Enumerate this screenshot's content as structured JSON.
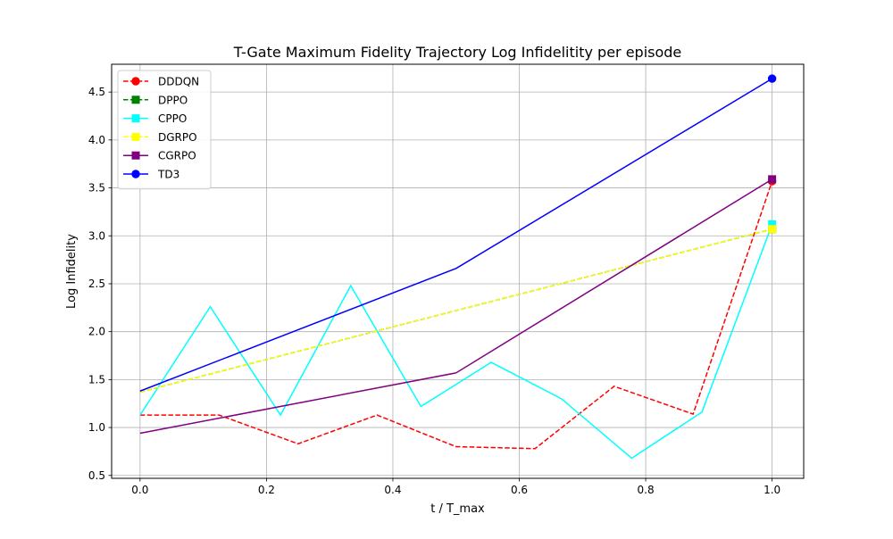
{
  "chart_data": {
    "type": "line",
    "title": "T-Gate Maximum Fidelity Trajectory Log Infidelitity per episode",
    "xlabel": "t / T_max",
    "ylabel": "Log Infidelity",
    "xlim": [
      -0.045,
      1.05
    ],
    "ylim": [
      0.47,
      4.79
    ],
    "xticks": [
      0.0,
      0.2,
      0.4,
      0.6,
      0.8,
      1.0
    ],
    "xtick_labels": [
      "0.0",
      "0.2",
      "0.4",
      "0.6",
      "0.8",
      "1.0"
    ],
    "yticks": [
      0.5,
      1.0,
      1.5,
      2.0,
      2.5,
      3.0,
      3.5,
      4.0,
      4.5
    ],
    "ytick_labels": [
      "0.5",
      "1.0",
      "1.5",
      "2.0",
      "2.5",
      "3.0",
      "3.5",
      "4.0",
      "4.5"
    ],
    "grid": true,
    "legend_position": "top-left",
    "series": [
      {
        "name": "DDDQN",
        "color": "#ff0000",
        "dash": "dashed",
        "marker": "circle",
        "x": [
          0.0,
          0.125,
          0.25,
          0.375,
          0.5,
          0.625,
          0.75,
          0.875,
          1.0
        ],
        "y": [
          1.13,
          1.13,
          0.83,
          1.13,
          0.8,
          0.78,
          1.43,
          1.14,
          3.57
        ]
      },
      {
        "name": "DPPO",
        "color": "#008000",
        "dash": "dashed",
        "marker": "square",
        "x": [
          0.0,
          1.0
        ],
        "y": [
          1.37,
          3.07
        ]
      },
      {
        "name": "CPPO",
        "color": "#00ffff",
        "dash": "solid",
        "marker": "square",
        "x": [
          0.0,
          0.1111,
          0.2222,
          0.3333,
          0.4444,
          0.5556,
          0.6667,
          0.7778,
          0.8889,
          1.0
        ],
        "y": [
          1.13,
          2.26,
          1.13,
          2.48,
          1.22,
          1.68,
          1.3,
          0.68,
          1.16,
          3.12
        ]
      },
      {
        "name": "DGRPO",
        "color": "#ffff00",
        "dash": "dashed",
        "marker": "square",
        "x": [
          0.0,
          1.0
        ],
        "y": [
          1.37,
          3.07
        ]
      },
      {
        "name": "CGRPO",
        "color": "#800080",
        "dash": "solid",
        "marker": "square",
        "x": [
          0.0,
          0.5,
          1.0
        ],
        "y": [
          0.94,
          1.57,
          3.59
        ]
      },
      {
        "name": "TD3",
        "color": "#0000ff",
        "dash": "solid",
        "marker": "circle",
        "x": [
          0.0,
          0.5,
          1.0
        ],
        "y": [
          1.38,
          2.66,
          4.64
        ]
      }
    ]
  }
}
